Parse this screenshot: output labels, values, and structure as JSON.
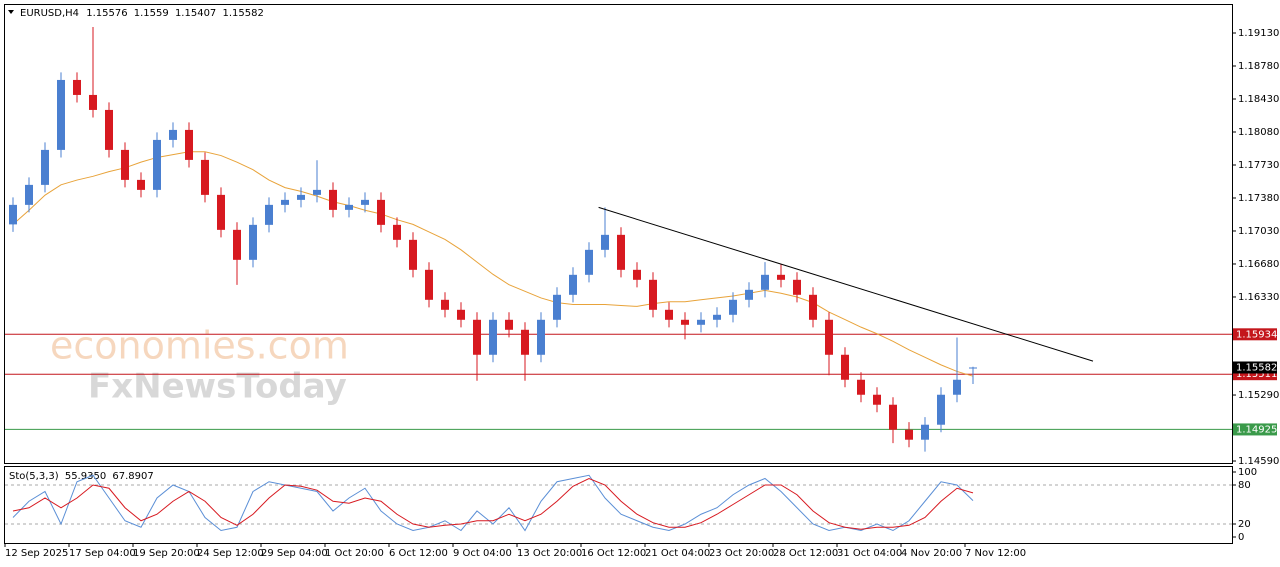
{
  "chart_data": {
    "type": "candlestick",
    "symbol": "EURUSD,H4",
    "open": [
      1.171,
      1.17307,
      1.17519,
      1.1789,
      1.18632,
      1.18473,
      1.18314,
      1.1789,
      1.17572,
      1.17466,
      1.17996,
      1.18102,
      1.17784,
      1.17413,
      1.17042,
      1.16724,
      1.17095,
      1.17307,
      1.1736,
      1.17413,
      1.17466,
      1.17254,
      1.17307,
      1.1736,
      1.17095,
      1.16936,
      1.16618,
      1.163,
      1.16194,
      1.16088,
      1.15717,
      1.16088,
      1.15982,
      1.15717,
      1.16088,
      1.16353,
      1.16565,
      1.1683,
      1.16989,
      1.16618,
      1.16512,
      1.16194,
      1.16088,
      1.16035,
      1.16088,
      1.16141,
      1.163,
      1.16406,
      1.16565,
      1.16512,
      1.16353,
      1.16088,
      1.15717,
      1.15452,
      1.15293,
      1.15187,
      1.14922,
      1.14816,
      1.14975,
      1.15293,
      1.15576
    ],
    "high": [
      1.17387,
      1.17599,
      1.1797,
      1.18712,
      1.18712,
      1.19194,
      1.18394,
      1.1797,
      1.17652,
      1.18076,
      1.18182,
      1.18182,
      1.17864,
      1.17493,
      1.17122,
      1.17175,
      1.17387,
      1.1744,
      1.17493,
      1.1778,
      1.17546,
      1.17387,
      1.1744,
      1.1744,
      1.17175,
      1.17016,
      1.16698,
      1.1638,
      1.16274,
      1.16168,
      1.16168,
      1.16168,
      1.16062,
      1.16168,
      1.16433,
      1.16645,
      1.1691,
      1.1728,
      1.17069,
      1.16698,
      1.16592,
      1.16274,
      1.16168,
      1.16168,
      1.16221,
      1.1638,
      1.16486,
      1.167,
      1.1668,
      1.16592,
      1.16433,
      1.16168,
      1.15797,
      1.15532,
      1.15373,
      1.15267,
      1.15002,
      1.15055,
      1.15373,
      1.159,
      1.1559
    ],
    "low": [
      1.1702,
      1.17227,
      1.17439,
      1.1781,
      1.18393,
      1.18234,
      1.1781,
      1.17492,
      1.17386,
      1.17386,
      1.17916,
      1.17704,
      1.17333,
      1.16962,
      1.16458,
      1.16644,
      1.17015,
      1.17227,
      1.1728,
      1.17333,
      1.17174,
      1.17174,
      1.17227,
      1.17015,
      1.16856,
      1.16538,
      1.1622,
      1.16114,
      1.16008,
      1.15442,
      1.15637,
      1.15902,
      1.15442,
      1.15637,
      1.16008,
      1.16273,
      1.16485,
      1.1675,
      1.16538,
      1.16432,
      1.16114,
      1.16008,
      1.1588,
      1.15955,
      1.16008,
      1.16061,
      1.1622,
      1.16326,
      1.16432,
      1.16273,
      1.16008,
      1.155,
      1.15372,
      1.15213,
      1.15107,
      1.1478,
      1.14736,
      1.14689,
      1.14895,
      1.15213,
      1.15407
    ],
    "close": [
      1.17307,
      1.17519,
      1.1789,
      1.18632,
      1.18473,
      1.18314,
      1.1789,
      1.17572,
      1.17466,
      1.17996,
      1.18102,
      1.17784,
      1.17413,
      1.17042,
      1.16724,
      1.17095,
      1.17307,
      1.1736,
      1.17413,
      1.17466,
      1.17254,
      1.17307,
      1.1736,
      1.17095,
      1.16936,
      1.16618,
      1.163,
      1.16194,
      1.16088,
      1.15717,
      1.16088,
      1.15982,
      1.15717,
      1.16088,
      1.16353,
      1.16565,
      1.1683,
      1.16989,
      1.16618,
      1.16512,
      1.16194,
      1.16088,
      1.16035,
      1.16088,
      1.16141,
      1.163,
      1.16406,
      1.16565,
      1.16512,
      1.16353,
      1.16088,
      1.15717,
      1.15452,
      1.15293,
      1.15187,
      1.14922,
      1.14816,
      1.14975,
      1.15293,
      1.15452,
      1.15582
    ],
    "colors": {
      "up": "#4a7fd0",
      "down": "#d71920"
    },
    "ylim": [
      1.14569,
      1.19427
    ],
    "yticks": [
      {
        "value": 1.1913,
        "label": "1.19130"
      },
      {
        "value": 1.1878,
        "label": "1.18780"
      },
      {
        "value": 1.1843,
        "label": "1.18430"
      },
      {
        "value": 1.1808,
        "label": "1.18080"
      },
      {
        "value": 1.1773,
        "label": "1.17730"
      },
      {
        "value": 1.1738,
        "label": "1.17380"
      },
      {
        "value": 1.1703,
        "label": "1.17030"
      },
      {
        "value": 1.1668,
        "label": "1.16680"
      },
      {
        "value": 1.1633,
        "label": "1.16330"
      },
      {
        "value": 1.1529,
        "label": "1.15290"
      },
      {
        "value": 1.1459,
        "label": "1.14590"
      }
    ],
    "time_labels": [
      "12 Sep 2025",
      "17 Sep 04:00",
      "19 Sep 20:00",
      "24 Sep 12:00",
      "29 Sep 04:00",
      "1 Oct 20:00",
      "6 Oct 12:00",
      "9 Oct 04:00",
      "13 Oct 20:00",
      "16 Oct 12:00",
      "21 Oct 04:00",
      "23 Oct 20:00",
      "28 Oct 12:00",
      "31 Oct 04:00",
      "4 Nov 20:00",
      "7 Nov 12:00"
    ],
    "moving_average": {
      "color": "#e8a33a",
      "values": [
        1.171,
        1.1725,
        1.1741,
        1.1752,
        1.1757,
        1.1761,
        1.1766,
        1.177,
        1.1776,
        1.1781,
        1.1784,
        1.1787,
        1.1787,
        1.1783,
        1.1776,
        1.1768,
        1.1757,
        1.1749,
        1.1745,
        1.174,
        1.1734,
        1.173,
        1.1725,
        1.1721,
        1.1715,
        1.171,
        1.1702,
        1.1694,
        1.1683,
        1.167,
        1.1657,
        1.1646,
        1.1639,
        1.1632,
        1.1627,
        1.1625,
        1.1625,
        1.1625,
        1.1624,
        1.1623,
        1.1626,
        1.1628,
        1.1628,
        1.163,
        1.1632,
        1.1634,
        1.1637,
        1.164,
        1.1637,
        1.1633,
        1.1627,
        1.1617,
        1.1609,
        1.1601,
        1.1594,
        1.1586,
        1.1577,
        1.1569,
        1.1561,
        1.1554,
        1.1549
      ]
    },
    "levels": [
      {
        "value": 1.15934,
        "color": "#c4161c"
      },
      {
        "value": 1.15511,
        "color": "#c4161c"
      },
      {
        "value": 1.14925,
        "color": "#3a9a4a"
      }
    ],
    "trendline": {
      "x": [
        36.6,
        67.5
      ],
      "y": [
        1.1728,
        1.1565
      ],
      "color": "#000000"
    },
    "oscillator": {
      "name": "Sto(5,3,3)",
      "main_label": "55.9350",
      "signal_label": "67.8907",
      "ylim": [
        0,
        100
      ],
      "yticks": [
        0,
        20,
        80,
        100
      ],
      "levels": [
        20,
        80
      ],
      "main": {
        "color": "#5b8fd6",
        "values": [
          30,
          55,
          70,
          20,
          85,
          95,
          60,
          25,
          15,
          60,
          80,
          70,
          30,
          10,
          15,
          70,
          85,
          80,
          75,
          70,
          40,
          60,
          75,
          40,
          20,
          10,
          15,
          25,
          10,
          40,
          20,
          45,
          10,
          55,
          85,
          90,
          95,
          60,
          35,
          25,
          15,
          10,
          20,
          35,
          45,
          65,
          80,
          90,
          70,
          45,
          20,
          10,
          15,
          10,
          20,
          10,
          25,
          55,
          85,
          80,
          55.935
        ]
      },
      "signal": {
        "color": "#d71920",
        "values": [
          40,
          45,
          60,
          45,
          60,
          80,
          75,
          45,
          25,
          35,
          55,
          70,
          55,
          30,
          18,
          35,
          60,
          80,
          78,
          72,
          55,
          52,
          60,
          55,
          35,
          20,
          15,
          18,
          20,
          25,
          25,
          35,
          25,
          35,
          55,
          78,
          90,
          80,
          55,
          35,
          22,
          15,
          15,
          22,
          35,
          50,
          65,
          80,
          80,
          65,
          40,
          22,
          15,
          12,
          15,
          15,
          18,
          30,
          55,
          75,
          67.8907
        ]
      }
    },
    "watermarks": [
      "economies.com",
      "FxNewsToday"
    ]
  }
}
